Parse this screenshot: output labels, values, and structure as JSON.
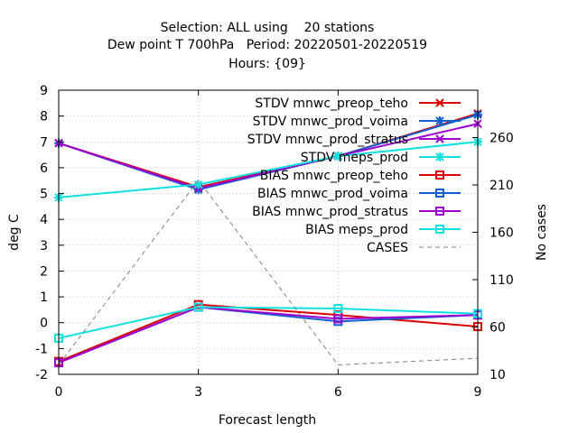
{
  "chart_data": {
    "type": "line",
    "title": [
      "Selection: ALL using    20 stations",
      "Dew point T 700hPa   Period: 20220501-20220519",
      "Hours: {09}"
    ],
    "xlabel": "Forecast length",
    "ylabel": "deg C",
    "y2label": "No cases",
    "x": [
      0,
      3,
      6,
      9
    ],
    "xlim": [
      0,
      9
    ],
    "ylim": [
      -2,
      9
    ],
    "y2lim": [
      10,
      310
    ],
    "xticks": [
      "0",
      "3",
      "6",
      "9"
    ],
    "yticks": [
      "-2",
      "-1",
      "0",
      "1",
      "2",
      "3",
      "4",
      "5",
      "6",
      "7",
      "8",
      "9"
    ],
    "y2ticks": [
      "10",
      "60",
      "110",
      "160",
      "210",
      "260"
    ],
    "grid": true,
    "legend_position": "top-right",
    "series": [
      {
        "name": "STDV mnwc_preop_teho",
        "color": "#dd0000",
        "marker": "x",
        "axis": "y",
        "values": [
          6.95,
          5.25,
          6.45,
          8.1
        ]
      },
      {
        "name": "STDV mnwc_prod_voima",
        "color": "#1060d0",
        "marker": "star",
        "axis": "y",
        "values": [
          6.95,
          5.15,
          6.45,
          8.05
        ]
      },
      {
        "name": "STDV mnwc_prod_stratus",
        "color": "#a000d0",
        "marker": "x",
        "axis": "y",
        "values": [
          6.95,
          5.2,
          6.45,
          7.7
        ]
      },
      {
        "name": "STDV meps_prod",
        "color": "#10e0e0",
        "marker": "star",
        "axis": "y",
        "values": [
          4.85,
          5.35,
          6.45,
          7.0
        ]
      },
      {
        "name": "BIAS mnwc_preop_teho",
        "color": "#dd0000",
        "marker": "square",
        "axis": "y",
        "values": [
          -1.5,
          0.7,
          0.3,
          -0.15
        ]
      },
      {
        "name": "BIAS mnwc_prod_voima",
        "color": "#1060d0",
        "marker": "square",
        "axis": "y",
        "values": [
          -1.55,
          0.6,
          0.05,
          0.3
        ]
      },
      {
        "name": "BIAS mnwc_prod_stratus",
        "color": "#a000d0",
        "marker": "square",
        "axis": "y",
        "values": [
          -1.55,
          0.6,
          0.15,
          0.3
        ]
      },
      {
        "name": "BIAS meps_prod",
        "color": "#10e0e0",
        "marker": "square",
        "axis": "y",
        "values": [
          -0.6,
          0.6,
          0.55,
          0.35
        ]
      },
      {
        "name": "CASES",
        "color": "#808080",
        "marker": "none",
        "dashed": true,
        "axis": "y2",
        "values": [
          20,
          215,
          20,
          27
        ]
      }
    ]
  }
}
